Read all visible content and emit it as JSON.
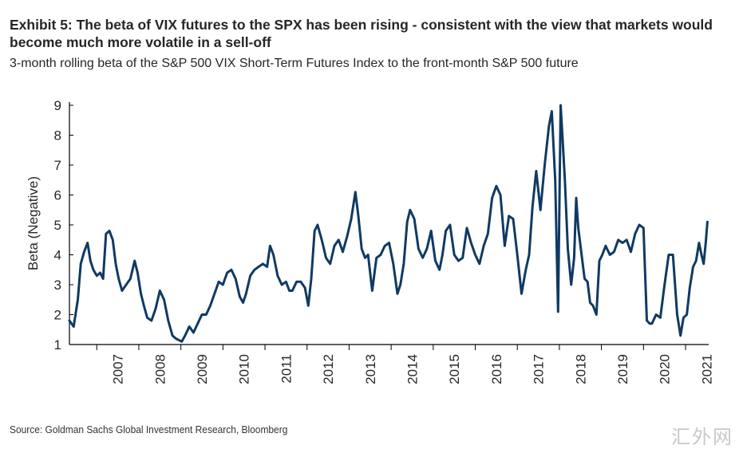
{
  "header": {
    "title": "Exhibit 5: The beta of VIX futures to the SPX has been rising - consistent with the view that markets would become much more volatile in a sell-off",
    "subtitle": "3-month rolling beta of the S&P 500 VIX Short-Term Futures Index to the front-month S&P 500 future"
  },
  "footer": {
    "source": "Source: Goldman Sachs Global Investment Research, Bloomberg",
    "watermark": "汇外网"
  },
  "colors": {
    "line": "#0f3a63",
    "axis": "#000000",
    "text": "#262626"
  },
  "chart_data": {
    "type": "line",
    "ylabel": "Beta (Negative)",
    "xlabel": "",
    "ylim": [
      1,
      9
    ],
    "xlim": [
      2006.35,
      2021.55
    ],
    "yticks": [
      1,
      2,
      3,
      4,
      5,
      6,
      7,
      8,
      9
    ],
    "xticks": [
      "2007",
      "2008",
      "2009",
      "2010",
      "2011",
      "2012",
      "2013",
      "2014",
      "2015",
      "2016",
      "2017",
      "2018",
      "2019",
      "2020",
      "2021"
    ],
    "grid": false,
    "series": [
      {
        "name": "",
        "x": [
          2006.35,
          2006.45,
          2006.55,
          2006.62,
          2006.7,
          2006.78,
          2006.85,
          2006.92,
          2007.0,
          2007.08,
          2007.15,
          2007.22,
          2007.3,
          2007.38,
          2007.45,
          2007.52,
          2007.6,
          2007.7,
          2007.8,
          2007.9,
          2007.97,
          2008.05,
          2008.12,
          2008.2,
          2008.3,
          2008.4,
          2008.5,
          2008.6,
          2008.7,
          2008.8,
          2008.88,
          2008.95,
          2009.02,
          2009.1,
          2009.2,
          2009.3,
          2009.4,
          2009.5,
          2009.6,
          2009.7,
          2009.8,
          2009.9,
          2010.0,
          2010.1,
          2010.2,
          2010.3,
          2010.4,
          2010.48,
          2010.55,
          2010.65,
          2010.75,
          2010.85,
          2010.95,
          2011.05,
          2011.12,
          2011.2,
          2011.3,
          2011.4,
          2011.5,
          2011.58,
          2011.65,
          2011.75,
          2011.85,
          2011.95,
          2012.03,
          2012.1,
          2012.18,
          2012.25,
          2012.35,
          2012.45,
          2012.55,
          2012.65,
          2012.75,
          2012.85,
          2012.95,
          2013.05,
          2013.15,
          2013.22,
          2013.3,
          2013.38,
          2013.45,
          2013.55,
          2013.65,
          2013.75,
          2013.85,
          2013.95,
          2014.05,
          2014.15,
          2014.22,
          2014.3,
          2014.38,
          2014.45,
          2014.55,
          2014.65,
          2014.75,
          2014.85,
          2014.95,
          2015.05,
          2015.15,
          2015.22,
          2015.3,
          2015.4,
          2015.5,
          2015.6,
          2015.7,
          2015.8,
          2015.9,
          2016.0,
          2016.1,
          2016.2,
          2016.3,
          2016.4,
          2016.5,
          2016.6,
          2016.7,
          2016.8,
          2016.9,
          2017.0,
          2017.1,
          2017.2,
          2017.28,
          2017.36,
          2017.45,
          2017.55,
          2017.65,
          2017.75,
          2017.82,
          2017.9,
          2017.97,
          2018.03,
          2018.08,
          2018.13,
          2018.2,
          2018.28,
          2018.35,
          2018.4,
          2018.45,
          2018.52,
          2018.6,
          2018.67,
          2018.73,
          2018.8,
          2018.88,
          2018.95,
          2019.02,
          2019.1,
          2019.2,
          2019.3,
          2019.4,
          2019.5,
          2019.6,
          2019.7,
          2019.8,
          2019.9,
          2020.0,
          2020.08,
          2020.15,
          2020.2,
          2020.3,
          2020.4,
          2020.5,
          2020.6,
          2020.7,
          2020.8,
          2020.88,
          2020.95,
          2021.03,
          2021.1,
          2021.18,
          2021.25,
          2021.32,
          2021.38,
          2021.43,
          2021.48,
          2021.52
        ],
        "values": [
          1.8,
          1.6,
          2.5,
          3.7,
          4.1,
          4.4,
          3.8,
          3.5,
          3.3,
          3.4,
          3.2,
          4.7,
          4.8,
          4.5,
          3.7,
          3.2,
          2.8,
          3.0,
          3.2,
          3.8,
          3.4,
          2.7,
          2.3,
          1.9,
          1.8,
          2.2,
          2.8,
          2.5,
          1.8,
          1.3,
          1.2,
          1.15,
          1.1,
          1.3,
          1.6,
          1.4,
          1.7,
          2.0,
          2.0,
          2.3,
          2.7,
          3.1,
          3.0,
          3.4,
          3.5,
          3.2,
          2.6,
          2.4,
          2.7,
          3.3,
          3.5,
          3.6,
          3.7,
          3.6,
          4.3,
          4.0,
          3.3,
          3.0,
          3.1,
          2.8,
          2.8,
          3.1,
          3.1,
          2.9,
          2.3,
          3.2,
          4.8,
          5.0,
          4.5,
          3.9,
          3.7,
          4.3,
          4.5,
          4.1,
          4.6,
          5.2,
          6.1,
          5.3,
          4.2,
          3.9,
          4.0,
          2.8,
          3.9,
          4.0,
          4.3,
          4.4,
          3.7,
          2.7,
          3.0,
          3.7,
          5.1,
          5.5,
          5.2,
          4.2,
          3.9,
          4.2,
          4.8,
          3.8,
          3.5,
          4.0,
          4.8,
          5.0,
          4.0,
          3.8,
          3.9,
          4.9,
          4.4,
          4.0,
          3.7,
          4.3,
          4.7,
          5.9,
          6.3,
          6.0,
          4.3,
          5.3,
          5.2,
          4.0,
          2.7,
          3.5,
          4.0,
          5.6,
          6.8,
          5.5,
          7.0,
          8.3,
          8.8,
          6.5,
          2.1,
          9.0,
          7.8,
          6.5,
          4.2,
          3.0,
          3.9,
          5.9,
          4.9,
          4.1,
          3.2,
          3.1,
          2.4,
          2.3,
          2.0,
          3.8,
          4.0,
          4.3,
          4.0,
          4.1,
          4.5,
          4.4,
          4.5,
          4.1,
          4.7,
          5.0,
          4.9,
          1.8,
          1.7,
          1.7,
          2.0,
          1.9,
          3.0,
          4.0,
          4.0,
          2.0,
          1.3,
          1.9,
          2.0,
          2.9,
          3.6,
          3.8,
          4.4,
          4.0,
          3.7,
          4.4,
          5.1
        ]
      }
    ]
  }
}
